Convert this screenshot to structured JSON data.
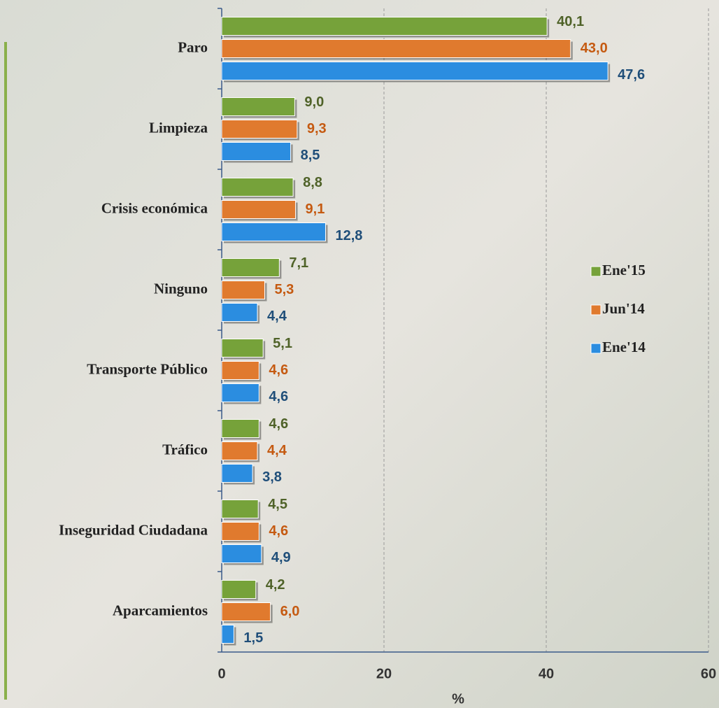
{
  "chart_data": {
    "type": "bar",
    "orientation": "horizontal",
    "categories": [
      "Paro",
      "Limpieza",
      "Crisis económica",
      "Ninguno",
      "Transporte Público",
      "Tráfico",
      "Inseguridad Ciudadana",
      "Aparcamientos"
    ],
    "series": [
      {
        "name": "Ene'15",
        "color": "#76a23a",
        "label_color": "#4f6228",
        "values": [
          40.1,
          9.0,
          8.8,
          7.1,
          5.1,
          4.6,
          4.5,
          4.2
        ],
        "value_labels": [
          "40,1",
          "9,0",
          "8,8",
          "7,1",
          "5,1",
          "4,6",
          "4,5",
          "4,2"
        ]
      },
      {
        "name": "Jun'14",
        "color": "#e07a2e",
        "label_color": "#c55a11",
        "values": [
          43.0,
          9.3,
          9.1,
          5.3,
          4.6,
          4.4,
          4.6,
          6.0
        ],
        "value_labels": [
          "43,0",
          "9,3",
          "9,1",
          "5,3",
          "4,6",
          "4,4",
          "4,6",
          "6,0"
        ]
      },
      {
        "name": "Ene'14",
        "color": "#2b8de0",
        "label_color": "#1f4e79",
        "values": [
          47.6,
          8.5,
          12.8,
          4.4,
          4.6,
          3.8,
          4.9,
          1.5
        ],
        "value_labels": [
          "47,6",
          "8,5",
          "12,8",
          "4,4",
          "4,6",
          "3,8",
          "4,9",
          "1,5"
        ]
      }
    ],
    "xlabel": "%",
    "xlim": [
      0,
      60
    ],
    "xticks": [
      0,
      20,
      40,
      60
    ],
    "grid": true,
    "legend": "right"
  }
}
